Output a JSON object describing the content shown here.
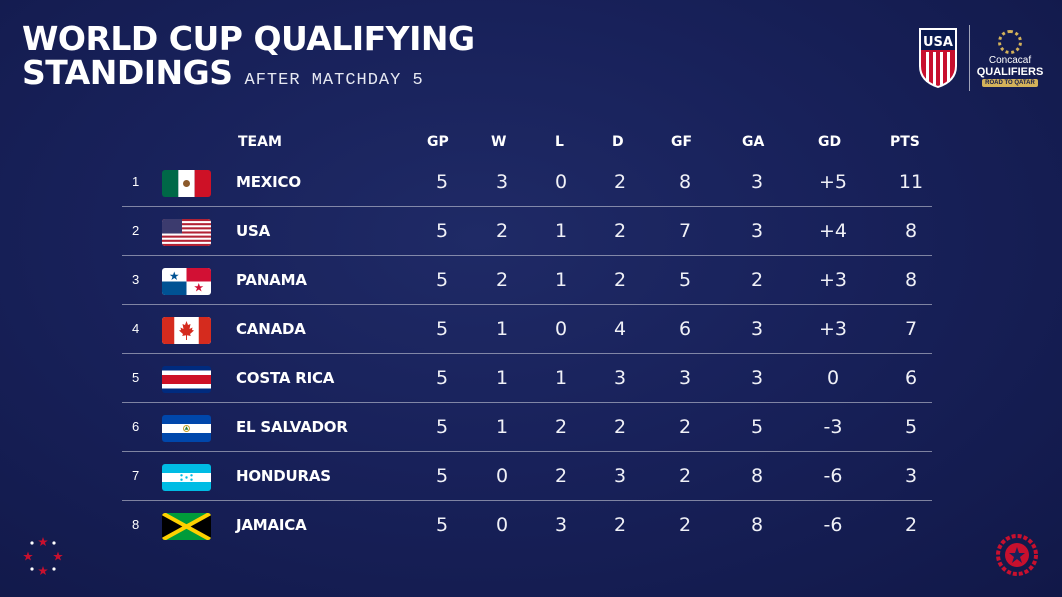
{
  "title_line1": "WORLD CUP QUALIFYING",
  "title_line2": "STANDINGS",
  "subtitle": "AFTER MATCHDAY 5",
  "logos": {
    "usa_text": "USA",
    "concacaf": "Concacaf",
    "qualifiers": "QUALIFIERS",
    "road": "ROAD TO QATAR"
  },
  "columns": [
    "TEAM",
    "GP",
    "W",
    "L",
    "D",
    "GF",
    "GA",
    "GD",
    "PTS"
  ],
  "rows": [
    {
      "rank": "1",
      "team": "MEXICO",
      "flag": "mexico-flag",
      "gp": "5",
      "w": "3",
      "l": "0",
      "d": "2",
      "gf": "8",
      "ga": "3",
      "gd": "+5",
      "pts": "11"
    },
    {
      "rank": "2",
      "team": "USA",
      "flag": "usa-flag",
      "gp": "5",
      "w": "2",
      "l": "1",
      "d": "2",
      "gf": "7",
      "ga": "3",
      "gd": "+4",
      "pts": "8"
    },
    {
      "rank": "3",
      "team": "PANAMA",
      "flag": "panama-flag",
      "gp": "5",
      "w": "2",
      "l": "1",
      "d": "2",
      "gf": "5",
      "ga": "2",
      "gd": "+3",
      "pts": "8"
    },
    {
      "rank": "4",
      "team": "CANADA",
      "flag": "canada-flag",
      "gp": "5",
      "w": "1",
      "l": "0",
      "d": "4",
      "gf": "6",
      "ga": "3",
      "gd": "+3",
      "pts": "7"
    },
    {
      "rank": "5",
      "team": "COSTA RICA",
      "flag": "costa-rica-flag",
      "gp": "5",
      "w": "1",
      "l": "1",
      "d": "3",
      "gf": "3",
      "ga": "3",
      "gd": "0",
      "pts": "6"
    },
    {
      "rank": "6",
      "team": "EL SALVADOR",
      "flag": "el-salvador-flag",
      "gp": "5",
      "w": "1",
      "l": "2",
      "d": "2",
      "gf": "2",
      "ga": "5",
      "gd": "-3",
      "pts": "5"
    },
    {
      "rank": "7",
      "team": "HONDURAS",
      "flag": "honduras-flag",
      "gp": "5",
      "w": "0",
      "l": "2",
      "d": "3",
      "gf": "2",
      "ga": "8",
      "gd": "-6",
      "pts": "3"
    },
    {
      "rank": "8",
      "team": "JAMAICA",
      "flag": "jamaica-flag",
      "gp": "5",
      "w": "0",
      "l": "3",
      "d": "2",
      "gf": "2",
      "ga": "8",
      "gd": "-6",
      "pts": "2"
    }
  ],
  "colors": {
    "background": "#18215a",
    "accent_red": "#c8102e",
    "gold": "#d4b25a"
  }
}
